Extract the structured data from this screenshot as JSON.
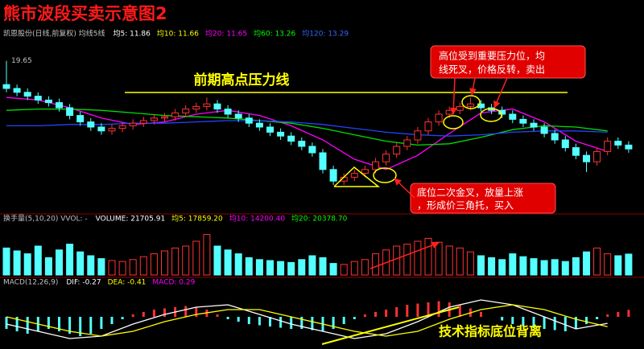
{
  "title": "熊市波段买卖示意图2",
  "annotations": {
    "pressure_line": "前期高点压力线",
    "sell_note": [
      "高位受到重要压力位，均",
      "线死叉，价格反转，卖出"
    ],
    "buy_note": [
      "底位二次金叉，放量上涨",
      "，形成价三角托，买入"
    ],
    "divergence": "技术指标底位背离"
  },
  "chart_data": [
    {
      "type": "candlestick",
      "header": "凯恩股份(日线,前复权) 均线5线",
      "legend": [
        {
          "text": "均5: 11.86",
          "color": "#ffffff"
        },
        {
          "text": "均10: 11.66",
          "color": "#ffff00"
        },
        {
          "text": "均20: 11.65",
          "color": "#ff00ff"
        },
        {
          "text": "均60: 13.26",
          "color": "#00ff00"
        },
        {
          "text": "均120: 13.29",
          "color": "#3366ff"
        }
      ],
      "up_color": "#ff3232",
      "down_color": "#54ffff",
      "ylim": [
        8,
        20.5
      ],
      "x": [
        0,
        1,
        2,
        3,
        4,
        5,
        6,
        7,
        8,
        9,
        10,
        11,
        12,
        13,
        14,
        15,
        16,
        17,
        18,
        19,
        20,
        21,
        22,
        23,
        24,
        25,
        26,
        27,
        28,
        29,
        30,
        31,
        32,
        33,
        34,
        35,
        36,
        37,
        38,
        39,
        40,
        41,
        42,
        43,
        44,
        45,
        46,
        47,
        48,
        49,
        50,
        51,
        52,
        53,
        54,
        55,
        56,
        57,
        58,
        59
      ],
      "open": [
        17.8,
        17.5,
        17.2,
        16.9,
        16.6,
        16.4,
        16.0,
        15.4,
        14.9,
        14.5,
        14.2,
        14.4,
        14.6,
        14.8,
        15.0,
        15.2,
        15.3,
        15.6,
        15.9,
        16.1,
        16.3,
        15.9,
        15.5,
        15.2,
        14.8,
        14.5,
        14.1,
        13.8,
        13.4,
        13.0,
        12.5,
        11.2,
        10.3,
        10.6,
        10.9,
        11.2,
        11.8,
        12.4,
        13.0,
        13.5,
        14.2,
        14.9,
        15.5,
        15.8,
        16.1,
        16.3,
        16.0,
        15.8,
        15.5,
        15.1,
        14.8,
        14.5,
        14.0,
        13.5,
        12.9,
        12.3,
        11.8,
        12.6,
        13.4,
        13.1
      ],
      "high": [
        19.65,
        17.8,
        17.5,
        17.2,
        16.9,
        16.7,
        16.3,
        15.7,
        15.2,
        14.8,
        14.7,
        14.9,
        15.1,
        15.3,
        15.5,
        15.6,
        15.9,
        16.2,
        16.4,
        16.8,
        16.6,
        16.2,
        15.8,
        15.5,
        15.1,
        14.8,
        14.4,
        14.1,
        13.7,
        13.3,
        12.8,
        11.5,
        10.9,
        11.2,
        11.5,
        12.1,
        12.7,
        13.3,
        13.8,
        14.5,
        15.2,
        15.8,
        16.1,
        16.4,
        16.8,
        16.6,
        16.3,
        16.1,
        15.8,
        15.4,
        15.1,
        14.8,
        14.3,
        13.8,
        13.2,
        12.6,
        12.9,
        13.7,
        13.7,
        13.4
      ],
      "low": [
        17.2,
        16.9,
        16.6,
        16.3,
        16.1,
        15.7,
        15.1,
        14.6,
        14.2,
        13.9,
        13.9,
        14.1,
        14.3,
        14.5,
        14.7,
        14.9,
        15.0,
        15.3,
        15.6,
        15.8,
        15.6,
        15.2,
        14.9,
        14.5,
        14.2,
        13.8,
        13.5,
        13.1,
        12.7,
        12.2,
        10.9,
        10.0,
        10.0,
        10.3,
        10.6,
        10.9,
        11.5,
        12.1,
        12.7,
        13.2,
        13.9,
        14.6,
        15.2,
        15.5,
        15.8,
        15.7,
        15.5,
        15.2,
        14.8,
        14.5,
        14.2,
        13.7,
        13.2,
        12.6,
        12.0,
        11.0,
        11.5,
        12.3,
        12.8,
        12.5
      ],
      "close": [
        17.5,
        17.2,
        16.9,
        16.6,
        16.4,
        16.0,
        15.4,
        14.9,
        14.5,
        14.2,
        14.4,
        14.6,
        14.8,
        15.0,
        15.2,
        15.3,
        15.6,
        15.9,
        16.1,
        16.3,
        15.9,
        15.5,
        15.2,
        14.8,
        14.5,
        14.1,
        13.8,
        13.4,
        13.0,
        12.5,
        11.2,
        10.3,
        10.6,
        10.9,
        11.2,
        11.8,
        12.4,
        13.0,
        13.5,
        14.2,
        14.9,
        15.5,
        15.8,
        16.1,
        16.3,
        16.0,
        15.8,
        15.5,
        15.1,
        14.8,
        14.5,
        14.0,
        13.5,
        12.9,
        12.3,
        11.8,
        12.6,
        13.4,
        13.1,
        12.8
      ],
      "lines": [
        {
          "color": "#ff00ff",
          "x": [
            0,
            3,
            6,
            9,
            12,
            15,
            18,
            21,
            24,
            27,
            30,
            33,
            36,
            39,
            42,
            45,
            48,
            51,
            54,
            57
          ],
          "values": [
            16.8,
            16.6,
            16.0,
            15.2,
            14.7,
            14.9,
            15.5,
            15.8,
            15.4,
            14.6,
            13.5,
            12.0,
            11.2,
            12.3,
            14.0,
            15.6,
            15.9,
            14.9,
            13.4,
            12.6
          ]
        },
        {
          "color": "#00e000",
          "x": [
            0,
            3,
            6,
            9,
            12,
            15,
            18,
            21,
            24,
            27,
            30,
            33,
            36,
            39,
            42,
            45,
            48,
            51,
            54,
            57
          ],
          "values": [
            15.8,
            15.9,
            15.9,
            15.8,
            15.6,
            15.4,
            15.3,
            15.2,
            15.0,
            14.8,
            14.4,
            13.9,
            13.4,
            13.1,
            13.2,
            13.7,
            14.3,
            14.6,
            14.5,
            14.2
          ]
        },
        {
          "color": "#2244ff",
          "x": [
            0,
            3,
            6,
            9,
            12,
            15,
            18,
            21,
            24,
            27,
            30,
            33,
            36,
            39,
            42,
            45,
            48,
            51,
            54,
            57
          ],
          "values": [
            14.6,
            14.6,
            14.7,
            14.7,
            14.8,
            14.8,
            14.9,
            15.0,
            15.0,
            14.9,
            14.7,
            14.4,
            14.1,
            13.9,
            13.8,
            13.9,
            14.1,
            14.2,
            14.2,
            14.1
          ]
        }
      ]
    },
    {
      "type": "bar",
      "header": "换手量(5,10,20) VVOL: -",
      "legend": [
        {
          "text": "VOLUME: 21705.91",
          "color": "#ffffff"
        },
        {
          "text": "均5: 17859.20",
          "color": "#ffff00"
        },
        {
          "text": "均10: 14200.40",
          "color": "#ff00ff"
        },
        {
          "text": "均20: 20378.70",
          "color": "#00ff00"
        }
      ],
      "ylim": [
        0,
        50000
      ],
      "values": [
        28000,
        25000,
        22000,
        30000,
        18000,
        26000,
        32000,
        24000,
        20000,
        17000,
        15000,
        14000,
        16000,
        19000,
        22000,
        25000,
        28000,
        30000,
        35000,
        42000,
        30000,
        26000,
        22000,
        18000,
        16000,
        15000,
        14000,
        13000,
        16000,
        20000,
        18000,
        12000,
        11000,
        14000,
        16000,
        22000,
        26000,
        30000,
        32000,
        35000,
        38000,
        34000,
        30000,
        28000,
        24000,
        20000,
        18000,
        16000,
        22000,
        19000,
        17000,
        15000,
        16000,
        14000,
        18000,
        24000,
        28000,
        22000,
        20000,
        21705.91
      ]
    },
    {
      "type": "macd",
      "header": "MACD(12,26,9)",
      "legend": [
        {
          "text": "DIF: -0.27",
          "color": "#ffffff"
        },
        {
          "text": "DEA: -0.41",
          "color": "#ffff00"
        },
        {
          "text": "MACD: 0.29",
          "color": "#ff00ff"
        }
      ],
      "ylim": [
        -1.2,
        1.2
      ],
      "values": [
        -0.5,
        -0.6,
        -0.7,
        -0.6,
        -0.5,
        -0.6,
        -0.7,
        -0.8,
        -0.7,
        -0.5,
        -0.3,
        -0.1,
        0.1,
        0.2,
        0.3,
        0.35,
        0.4,
        0.45,
        0.4,
        0.3,
        0.1,
        -0.1,
        -0.2,
        -0.3,
        -0.35,
        -0.4,
        -0.45,
        -0.5,
        -0.5,
        -0.55,
        -0.6,
        -0.5,
        -0.3,
        -0.1,
        0.1,
        0.2,
        0.3,
        0.4,
        0.5,
        0.55,
        0.6,
        0.65,
        0.6,
        0.5,
        0.35,
        0.2,
        0.0,
        -0.15,
        -0.3,
        -0.4,
        -0.45,
        -0.5,
        -0.55,
        -0.6,
        -0.5,
        -0.3,
        -0.1,
        0.1,
        0.2,
        0.29
      ],
      "lines": [
        {
          "color": "#ffffff",
          "x": [
            0,
            3,
            6,
            9,
            12,
            15,
            18,
            21,
            24,
            27,
            30,
            33,
            36,
            39,
            42,
            45,
            48,
            51,
            54,
            57
          ],
          "values": [
            -0.3,
            -0.6,
            -0.9,
            -0.8,
            -0.3,
            0.1,
            0.4,
            0.5,
            0.1,
            -0.3,
            -0.6,
            -0.9,
            -0.7,
            -0.2,
            0.4,
            0.7,
            0.5,
            0.0,
            -0.5,
            -0.27
          ]
        },
        {
          "color": "#ffff00",
          "x": [
            0,
            3,
            6,
            9,
            12,
            15,
            18,
            21,
            24,
            27,
            30,
            33,
            36,
            39,
            42,
            45,
            48,
            51,
            54,
            57
          ],
          "values": [
            0.0,
            -0.3,
            -0.6,
            -0.8,
            -0.6,
            -0.2,
            0.1,
            0.3,
            0.3,
            0.0,
            -0.3,
            -0.6,
            -0.8,
            -0.6,
            -0.1,
            0.3,
            0.5,
            0.3,
            -0.1,
            -0.41
          ]
        }
      ]
    }
  ]
}
